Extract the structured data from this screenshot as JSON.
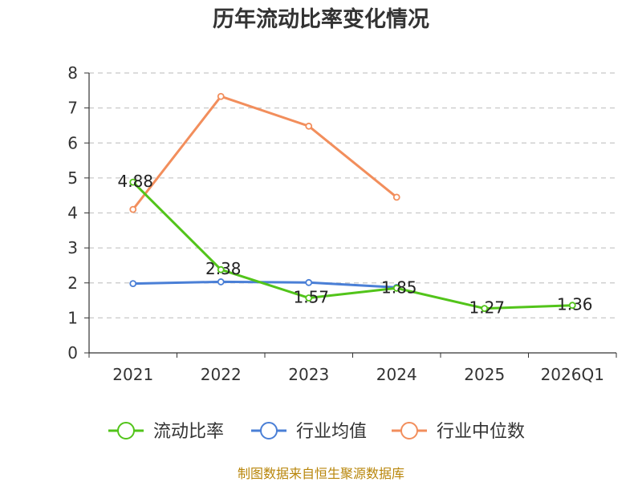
{
  "chart_data": {
    "type": "line",
    "title": "历年流动比率变化情况",
    "categories": [
      "2021",
      "2022",
      "2023",
      "2024",
      "2025",
      "2026Q1"
    ],
    "ylim": [
      0,
      8
    ],
    "yticks": [
      0,
      1,
      2,
      3,
      4,
      5,
      6,
      7,
      8
    ],
    "grid": true,
    "legend_position": "bottom",
    "series": [
      {
        "name": "流动比率",
        "color": "#52c41a",
        "values": [
          4.88,
          2.38,
          1.57,
          1.85,
          1.27,
          1.36
        ],
        "labels": [
          "4.88",
          "2.38",
          "1.57",
          "1.85",
          "1.27",
          "1.36"
        ],
        "show_labels": true
      },
      {
        "name": "行业均值",
        "color": "#4a7fd6",
        "values": [
          1.98,
          2.03,
          2.01,
          1.87,
          null,
          null
        ],
        "show_labels": false
      },
      {
        "name": "行业中位数",
        "color": "#f28e5c",
        "values": [
          4.1,
          7.33,
          6.48,
          4.45,
          null,
          null
        ],
        "show_labels": false
      }
    ],
    "source": "制图数据来自恒生聚源数据库"
  }
}
